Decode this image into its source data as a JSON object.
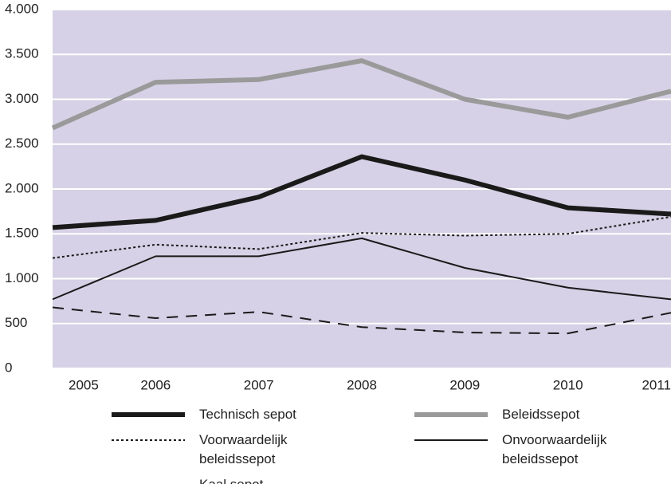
{
  "chart_data": {
    "type": "line",
    "x": [
      2005,
      2006,
      2007,
      2008,
      2009,
      2010,
      2011
    ],
    "xlim": [
      2005,
      2011
    ],
    "ylim": [
      0,
      4000
    ],
    "yticks": [
      0,
      500,
      {
        "value": 1000,
        "label": "1.000"
      },
      {
        "value": 1500,
        "label": "1.500"
      },
      {
        "value": 2000,
        "label": "2.000"
      },
      {
        "value": 2500,
        "label": "2.500"
      },
      {
        "value": 3000,
        "label": "3.000"
      },
      {
        "value": 3500,
        "label": "3.500"
      },
      {
        "value": 4000,
        "label": "4.000"
      }
    ],
    "grid": true,
    "background": "#d6d1e6",
    "series": [
      {
        "name": "Technisch sepot",
        "color": "#1a1a1a",
        "width": 6,
        "style": "solid",
        "values": [
          1570,
          1650,
          1910,
          2360,
          2100,
          1790,
          1720
        ]
      },
      {
        "name": "Beleidssepot",
        "color": "#9a9a9a",
        "width": 6,
        "style": "solid",
        "values": [
          2680,
          3190,
          3220,
          3430,
          3000,
          2800,
          3090
        ]
      },
      {
        "name": "Voorwaardelijk beleidssepot",
        "color": "#1a1a1a",
        "width": 2,
        "style": "dotted",
        "values": [
          1230,
          1380,
          1330,
          1510,
          1480,
          1500,
          1690
        ]
      },
      {
        "name": "Onvoorwaardelijk beleidssepot",
        "color": "#1a1a1a",
        "width": 2,
        "style": "solid",
        "values": [
          770,
          1250,
          1250,
          1450,
          1120,
          900,
          770
        ]
      },
      {
        "name": "Kaal sepot",
        "color": "#1a1a1a",
        "width": 2,
        "style": "dashed",
        "values": [
          680,
          560,
          630,
          460,
          400,
          390,
          620
        ]
      }
    ]
  }
}
